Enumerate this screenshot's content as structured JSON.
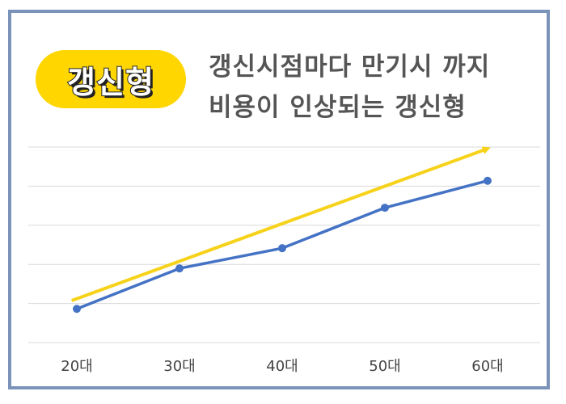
{
  "badge": {
    "text": "갱신형"
  },
  "headline": {
    "line1": "갱신시점마다 만기시 까지",
    "line2": "비용이 인상되는 갱신형"
  },
  "colors": {
    "frame": "#7b93b8",
    "badge": "#ffd600",
    "series": "#4472c4",
    "arrow": "#f6d21a",
    "grid": "#d9d9d9"
  },
  "chart_data": {
    "type": "line",
    "categories": [
      "20대",
      "30대",
      "40대",
      "50대",
      "60대"
    ],
    "series": [
      {
        "values": [
          1.0,
          2.2,
          2.8,
          4.0,
          4.8
        ]
      }
    ],
    "trend_arrow": {
      "from": [
        0.95,
        0
      ],
      "to": [
        5.0,
        0
      ]
    },
    "ylim": [
      0,
      5.8
    ],
    "grid": true,
    "ytick_labels_shown": false
  }
}
